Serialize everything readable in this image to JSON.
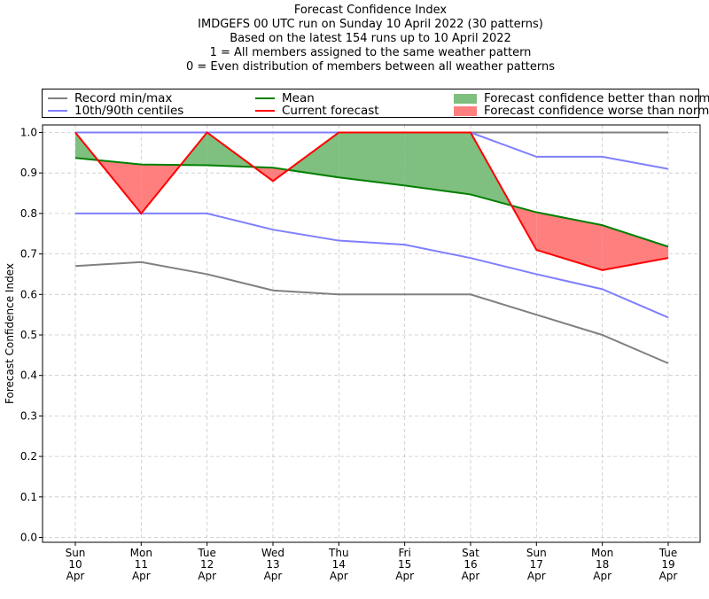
{
  "title": {
    "lines": [
      "Forecast Confidence Index",
      "IMDGEFS 00 UTC run on Sunday 10 April 2022 (30 patterns)",
      "Based on the latest 154 runs up to 10 April 2022",
      "1 = All members assigned to the same weather pattern",
      "0 = Even distribution of members between all weather patterns"
    ]
  },
  "legend": {
    "items": [
      {
        "label": "Record min/max",
        "kind": "line",
        "color": "#808080"
      },
      {
        "label": "10th/90th centiles",
        "kind": "line",
        "color": "#7f7fff"
      },
      {
        "label": "Mean",
        "kind": "line",
        "color": "#008000"
      },
      {
        "label": "Current forecast",
        "kind": "line",
        "color": "#ff0000"
      },
      {
        "label": "Forecast confidence better than normal",
        "kind": "patch",
        "color": "#7fbf7f"
      },
      {
        "label": "Forecast confidence worse than normal",
        "kind": "patch",
        "color": "#ff7f7f"
      }
    ]
  },
  "chart_data": {
    "type": "line",
    "title": "Forecast Confidence Index",
    "xlabel": "",
    "ylabel": "Forecast Confidence Index",
    "ylim": [
      0,
      1
    ],
    "yticks": [
      "0.0",
      "0.1",
      "0.2",
      "0.3",
      "0.4",
      "0.5",
      "0.6",
      "0.7",
      "0.8",
      "0.9",
      "1.0"
    ],
    "grid": true,
    "legend_position": "top",
    "categories": [
      [
        "Sun",
        "10",
        "Apr"
      ],
      [
        "Mon",
        "11",
        "Apr"
      ],
      [
        "Tue",
        "12",
        "Apr"
      ],
      [
        "Wed",
        "13",
        "Apr"
      ],
      [
        "Thu",
        "14",
        "Apr"
      ],
      [
        "Fri",
        "15",
        "Apr"
      ],
      [
        "Sat",
        "16",
        "Apr"
      ],
      [
        "Sun",
        "17",
        "Apr"
      ],
      [
        "Mon",
        "18",
        "Apr"
      ],
      [
        "Tue",
        "19",
        "Apr"
      ]
    ],
    "series": [
      {
        "name": "Record min/max",
        "role": "record_max",
        "color": "#808080",
        "values": [
          1.0,
          1.0,
          1.0,
          1.0,
          1.0,
          1.0,
          1.0,
          1.0,
          1.0,
          1.0
        ]
      },
      {
        "name": "Record min/max",
        "role": "record_min",
        "color": "#808080",
        "values": [
          0.67,
          0.68,
          0.65,
          0.61,
          0.6,
          0.6,
          0.6,
          0.55,
          0.5,
          0.43
        ]
      },
      {
        "name": "10th/90th centiles",
        "role": "p90",
        "color": "#7f7fff",
        "values": [
          1.0,
          1.0,
          1.0,
          1.0,
          1.0,
          1.0,
          1.0,
          0.94,
          0.94,
          0.91
        ]
      },
      {
        "name": "10th/90th centiles",
        "role": "p10",
        "color": "#7f7fff",
        "values": [
          0.8,
          0.8,
          0.8,
          0.76,
          0.733,
          0.723,
          0.69,
          0.65,
          0.613,
          0.543
        ]
      },
      {
        "name": "Mean",
        "role": "mean",
        "color": "#008000",
        "values": [
          0.937,
          0.921,
          0.919,
          0.913,
          0.889,
          0.869,
          0.847,
          0.803,
          0.771,
          0.718
        ]
      },
      {
        "name": "Current forecast",
        "role": "current",
        "color": "#ff0000",
        "values": [
          1.0,
          0.8,
          1.0,
          0.88,
          1.0,
          1.0,
          1.0,
          0.71,
          0.66,
          0.69
        ]
      }
    ],
    "fill_colors": {
      "better": "#7fbf7f",
      "worse": "#ff7f7f"
    }
  }
}
